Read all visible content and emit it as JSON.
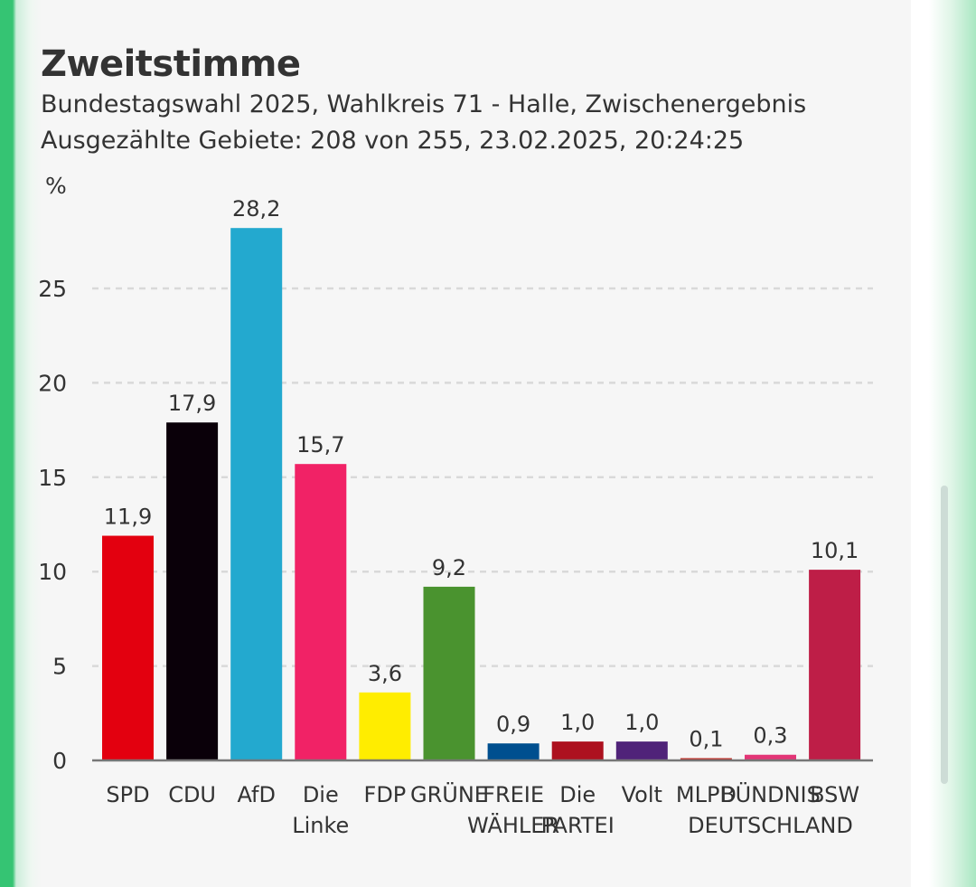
{
  "header": {
    "title": "Zweitstimme",
    "subtitle_line1": "Bundestagswahl 2025, Wahlkreis 71 - Halle, Zwischenergebnis",
    "subtitle_line2": "Ausgezählte Gebiete: 208 von 255, 23.02.2025, 20:24:25"
  },
  "chart_data": {
    "type": "bar",
    "title": "Zweitstimme",
    "subtitle": "Bundestagswahl 2025, Wahlkreis 71 - Halle, Zwischenergebnis",
    "xlabel": "",
    "ylabel": "%",
    "ylim": [
      0,
      28.2
    ],
    "yticks": [
      0,
      5,
      10,
      15,
      20,
      25
    ],
    "grid": true,
    "legend": "none",
    "categories": [
      [
        "SPD"
      ],
      [
        "CDU"
      ],
      [
        "AfD"
      ],
      [
        "Die",
        "Linke"
      ],
      [
        "FDP"
      ],
      [
        "GRÜNE"
      ],
      [
        "FREIE",
        "WÄHLER"
      ],
      [
        "Die",
        "PARTEI"
      ],
      [
        "Volt"
      ],
      [
        "MLPD"
      ],
      [
        "BÜNDNIS",
        "DEUTSCHLAND"
      ],
      [
        "BSW"
      ]
    ],
    "values": [
      11.9,
      17.9,
      28.2,
      15.7,
      3.6,
      9.2,
      0.9,
      1.0,
      1.0,
      0.1,
      0.3,
      10.1
    ],
    "value_labels": [
      "11,9",
      "17,9",
      "28,2",
      "15,7",
      "3,6",
      "9,2",
      "0,9",
      "1,0",
      "1,0",
      "0,1",
      "0,3",
      "10,1"
    ],
    "colors": [
      "#e3000f",
      "#0a0009",
      "#23a9cf",
      "#f12266",
      "#ffed00",
      "#4a932f",
      "#004f8f",
      "#ad111f",
      "#502379",
      "#bf2b23",
      "#e33576",
      "#be1e47"
    ]
  }
}
